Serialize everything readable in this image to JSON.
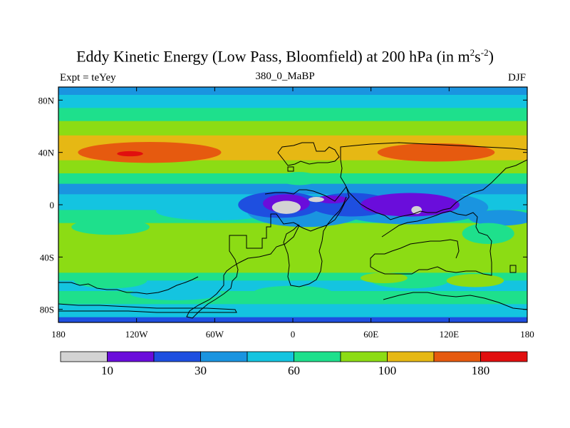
{
  "title_main": "Eddy Kinetic Energy (Low Pass, Bloomfield) at 200 hPa (in m",
  "title_sup1": "2",
  "title_mid": "s",
  "title_sup2": "-2",
  "title_end": ")",
  "left_subtitle": "Expt = teYey",
  "center_subtitle": "380_0_MaBP",
  "right_subtitle": "DJF",
  "chart_data": {
    "type": "heatmap",
    "title": "Eddy Kinetic Energy (Low Pass, Bloomfield) at 200 hPa (in m^2 s^-2)",
    "x_range": [
      -180,
      180
    ],
    "y_range": [
      -90,
      90
    ],
    "x_ticks": [
      {
        "value": -180,
        "label": "180"
      },
      {
        "value": -120,
        "label": "120W"
      },
      {
        "value": -60,
        "label": "60W"
      },
      {
        "value": 0,
        "label": "0"
      },
      {
        "value": 60,
        "label": "60E"
      },
      {
        "value": 120,
        "label": "120E"
      },
      {
        "value": 180,
        "label": "180"
      }
    ],
    "y_ticks": [
      {
        "value": 80,
        "label": "80N"
      },
      {
        "value": 40,
        "label": "40N"
      },
      {
        "value": 0,
        "label": "0"
      },
      {
        "value": -40,
        "label": "40S"
      },
      {
        "value": -80,
        "label": "80S"
      }
    ],
    "colorbar": {
      "colors": [
        "#d3d3d3",
        "#6a0ddb",
        "#1e4fe0",
        "#1a94e0",
        "#14c4e0",
        "#1ee08c",
        "#8cdc14",
        "#e6b814",
        "#e65a0f",
        "#e10f0f"
      ],
      "labels": [
        {
          "boundary": 1,
          "text": "10"
        },
        {
          "boundary": 3,
          "text": "30"
        },
        {
          "boundary": 5,
          "text": "60"
        },
        {
          "boundary": 7,
          "text": "100"
        },
        {
          "boundary": 9,
          "text": "180"
        }
      ]
    },
    "bands": [
      {
        "lat_top": 90,
        "lat_bottom": 84,
        "level": 4
      },
      {
        "lat_top": 84,
        "lat_bottom": 74,
        "level": 5
      },
      {
        "lat_top": 74,
        "lat_bottom": 64,
        "level": 6
      },
      {
        "lat_top": 64,
        "lat_bottom": 53,
        "level": 7
      },
      {
        "lat_top": 53,
        "lat_bottom": 34,
        "level": 8
      },
      {
        "lat_top": 34,
        "lat_bottom": 24,
        "level": 7
      },
      {
        "lat_top": 24,
        "lat_bottom": 16,
        "level": 6
      },
      {
        "lat_top": 16,
        "lat_bottom": 8,
        "level": 4
      },
      {
        "lat_top": 8,
        "lat_bottom": -4,
        "level": 5
      },
      {
        "lat_top": -4,
        "lat_bottom": -14,
        "level": 6
      },
      {
        "lat_top": -14,
        "lat_bottom": -52,
        "level": 7
      },
      {
        "lat_top": -52,
        "lat_bottom": -58,
        "level": 6
      },
      {
        "lat_top": -58,
        "lat_bottom": -66,
        "level": 5
      },
      {
        "lat_top": -66,
        "lat_bottom": -76,
        "level": 6
      },
      {
        "lat_top": -76,
        "lat_bottom": -86,
        "level": 5
      },
      {
        "lat_top": -86,
        "lat_bottom": -90,
        "level": 3
      }
    ],
    "blobs": [
      {
        "lon": -110,
        "lat": 40,
        "rlon": 55,
        "rlat": 8,
        "level": 9
      },
      {
        "lon": 110,
        "lat": 40,
        "rlon": 45,
        "rlat": 7,
        "level": 9
      },
      {
        "lon": -125,
        "lat": 39,
        "rlon": 10,
        "rlat": 2,
        "level": 10
      },
      {
        "lon": 5,
        "lat": 20,
        "rlon": 15,
        "rlat": 5,
        "level": 6
      },
      {
        "lon": -60,
        "lat": -5,
        "rlon": 45,
        "rlat": 7,
        "level": 5
      },
      {
        "lon": 10,
        "lat": -5,
        "rlon": 45,
        "rlat": 12,
        "level": 4
      },
      {
        "lon": 90,
        "lat": -2,
        "rlon": 60,
        "rlat": 13,
        "level": 4
      },
      {
        "lon": 160,
        "lat": -10,
        "rlon": 25,
        "rlat": 6,
        "level": 4
      },
      {
        "lon": -10,
        "lat": 0,
        "rlon": 32,
        "rlat": 10,
        "level": 3
      },
      {
        "lon": 45,
        "lat": 0,
        "rlon": 32,
        "rlat": 9,
        "level": 3
      },
      {
        "lon": 90,
        "lat": 0,
        "rlon": 38,
        "rlat": 9,
        "level": 2
      },
      {
        "lon": -5,
        "lat": 1,
        "rlon": 18,
        "rlat": 7,
        "level": 2
      },
      {
        "lon": 30,
        "lat": 4,
        "rlon": 12,
        "rlat": 3,
        "level": 2
      },
      {
        "lon": -5,
        "lat": -2,
        "rlon": 11,
        "rlat": 5,
        "level": 1
      },
      {
        "lon": 18,
        "lat": 4,
        "rlon": 6,
        "rlat": 2,
        "level": 1
      },
      {
        "lon": 95,
        "lat": -4,
        "rlon": 4,
        "rlat": 3,
        "level": 1
      },
      {
        "lon": -140,
        "lat": -17,
        "rlon": 30,
        "rlat": 6,
        "level": 6
      },
      {
        "lon": 150,
        "lat": -22,
        "rlon": 20,
        "rlat": 8,
        "level": 6
      },
      {
        "lon": -140,
        "lat": -58,
        "rlon": 28,
        "rlat": 6,
        "level": 6
      },
      {
        "lon": 0,
        "lat": -67,
        "rlon": 30,
        "rlat": 5,
        "level": 6
      },
      {
        "lon": 90,
        "lat": -58,
        "rlon": 30,
        "rlat": 6,
        "level": 6
      },
      {
        "lon": 140,
        "lat": -58,
        "rlon": 22,
        "rlat": 5,
        "level": 7
      },
      {
        "lon": 70,
        "lat": -56,
        "rlon": 18,
        "rlat": 4,
        "level": 7
      },
      {
        "lon": -90,
        "lat": -68,
        "rlon": 35,
        "rlat": 5,
        "level": 5
      }
    ]
  }
}
